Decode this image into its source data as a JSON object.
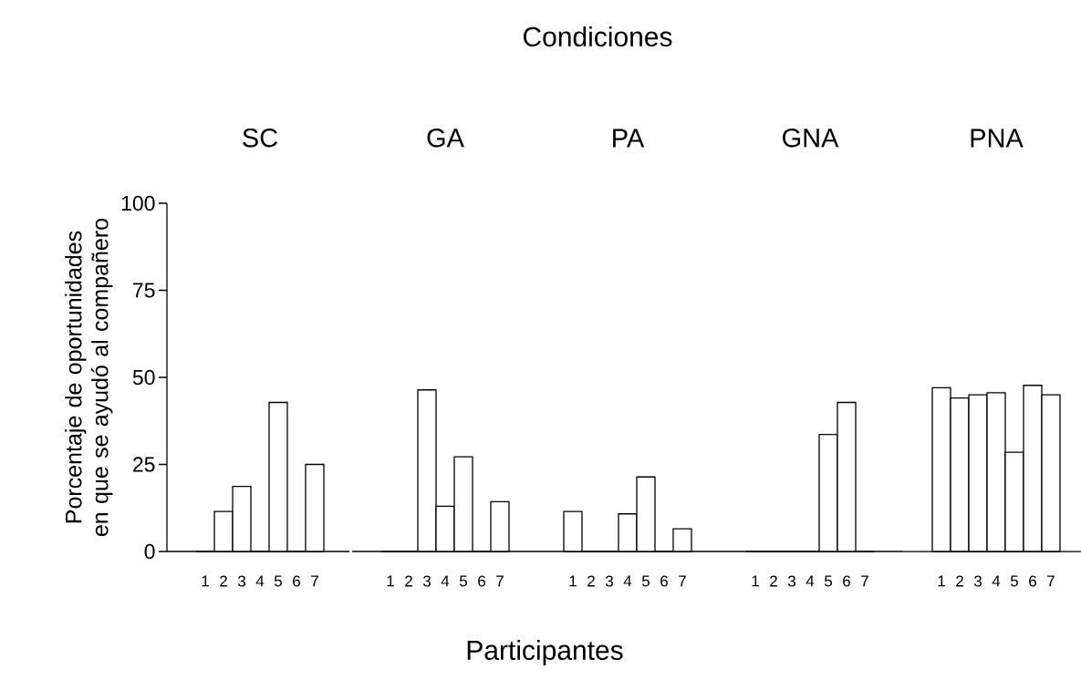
{
  "chart_data": [
    {
      "type": "bar",
      "title": "SC",
      "ylabel": "Porcentaje de oportunidades en que se ayudó al compañero",
      "categories": [
        "1",
        "2",
        "3",
        "4",
        "5",
        "6",
        "7"
      ],
      "values": [
        0,
        11.5,
        18.7,
        0,
        42.8,
        0,
        25
      ],
      "color": "#ffffff",
      "ylim": [
        0,
        100
      ],
      "yticks": [
        0,
        25,
        50,
        75,
        100
      ]
    },
    {
      "type": "bar",
      "title": "GA",
      "categories": [
        "1",
        "2",
        "3",
        "4",
        "5",
        "6",
        "7"
      ],
      "values": [
        0,
        0,
        46.4,
        13,
        27.2,
        0,
        14.3
      ],
      "color": "#ffffff",
      "ylim": [
        0,
        100
      ],
      "yticks": [
        0,
        25,
        50,
        75,
        100
      ],
      "tick_labels": "x"
    },
    {
      "type": "bar",
      "title": "PA",
      "xlabel": "Participantes",
      "annotations": [
        "Condiciones"
      ],
      "categories": [
        "1",
        "2",
        "3",
        "4",
        "5",
        "6",
        "7"
      ],
      "values": [
        11.5,
        0,
        0,
        10.8,
        21.4,
        0,
        6.5
      ],
      "color": "#ffffff",
      "ylim": [
        0,
        100
      ],
      "yticks": [
        0,
        25,
        50,
        75,
        100
      ],
      "tick_labels": "x"
    },
    {
      "type": "bar",
      "title": "GNA",
      "categories": [
        "1",
        "2",
        "3",
        "4",
        "5",
        "6",
        "7"
      ],
      "values": [
        0,
        0,
        0,
        0,
        33.6,
        42.8,
        0
      ],
      "color": "#ffffff",
      "ylim": [
        0,
        100
      ],
      "yticks": [
        0,
        25,
        50,
        75,
        100
      ],
      "tick_labels": "x"
    },
    {
      "type": "bar",
      "title": "PNA",
      "categories": [
        "1",
        "2",
        "3",
        "4",
        "5",
        "6",
        "7"
      ],
      "values": [
        47.0,
        44.1,
        45.0,
        45.6,
        28.5,
        47.7,
        45.0
      ],
      "color": "#ffffff",
      "ylim": [
        0,
        100
      ],
      "yticks": [
        0,
        25,
        50,
        75,
        100
      ],
      "tick_labels": "x"
    }
  ]
}
